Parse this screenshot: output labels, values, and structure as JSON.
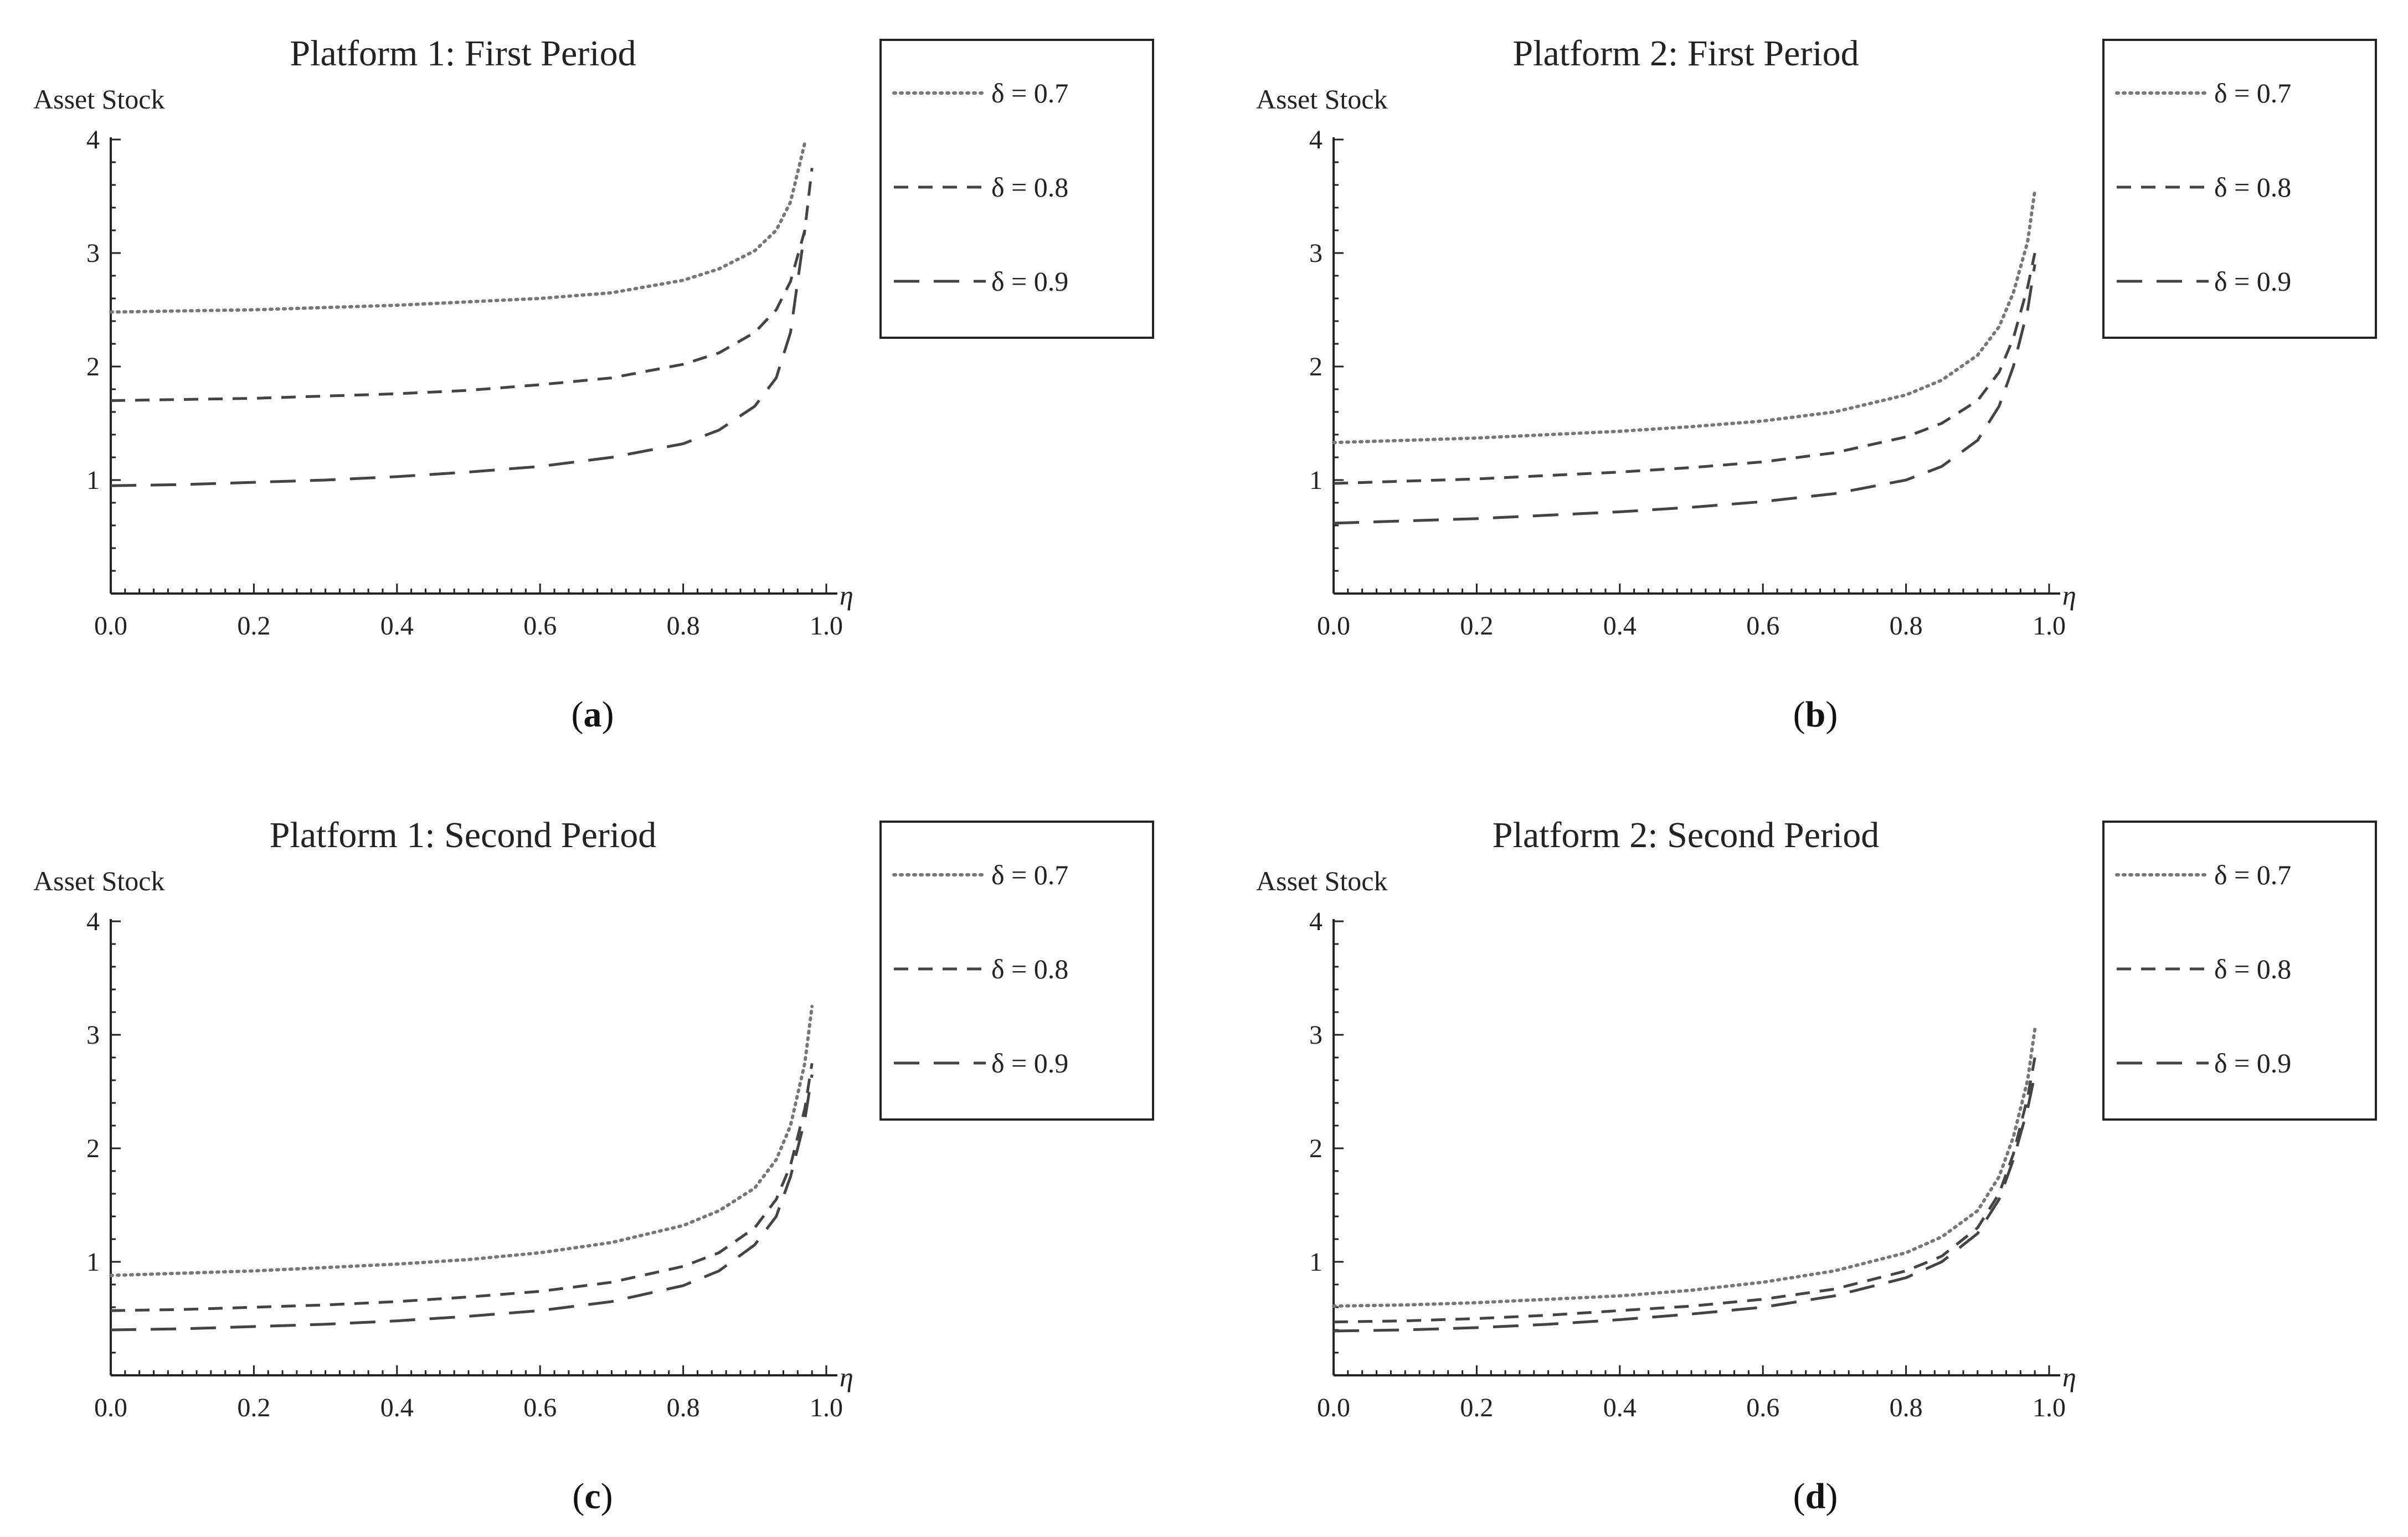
{
  "chart_data": [
    {
      "type": "line",
      "title": "Platform 1: First Period",
      "ylabel": "Asset Stock",
      "xlabel": "η",
      "caption": "a",
      "xlim": [
        0,
        1
      ],
      "ylim": [
        0,
        4
      ],
      "xticks": [
        "0.0",
        "0.2",
        "0.4",
        "0.6",
        "0.8",
        "1.0"
      ],
      "yticks": [
        "1",
        "2",
        "3",
        "4"
      ],
      "grid": false,
      "legend_position": "right",
      "series": [
        {
          "name": "δ = 0.7",
          "style": "dotted",
          "x": [
            0,
            0.1,
            0.2,
            0.3,
            0.4,
            0.5,
            0.6,
            0.7,
            0.8,
            0.85,
            0.9,
            0.93,
            0.95,
            0.97
          ],
          "y": [
            2.48,
            2.49,
            2.5,
            2.52,
            2.54,
            2.57,
            2.6,
            2.65,
            2.76,
            2.86,
            3.02,
            3.2,
            3.45,
            3.97
          ]
        },
        {
          "name": "δ = 0.8",
          "style": "dashed",
          "x": [
            0,
            0.1,
            0.2,
            0.3,
            0.4,
            0.5,
            0.6,
            0.7,
            0.8,
            0.85,
            0.9,
            0.93,
            0.95,
            0.97,
            0.98
          ],
          "y": [
            1.7,
            1.71,
            1.72,
            1.74,
            1.76,
            1.79,
            1.84,
            1.9,
            2.02,
            2.12,
            2.3,
            2.5,
            2.75,
            3.2,
            3.75
          ]
        },
        {
          "name": "δ = 0.9",
          "style": "longdash",
          "x": [
            0,
            0.1,
            0.2,
            0.3,
            0.4,
            0.5,
            0.6,
            0.7,
            0.8,
            0.85,
            0.9,
            0.93,
            0.95,
            0.97
          ],
          "y": [
            0.95,
            0.96,
            0.98,
            1.0,
            1.03,
            1.07,
            1.12,
            1.2,
            1.32,
            1.44,
            1.65,
            1.9,
            2.3,
            3.2
          ]
        }
      ]
    },
    {
      "type": "line",
      "title": "Platform 2: First Period",
      "ylabel": "Asset Stock",
      "xlabel": "η",
      "caption": "b",
      "xlim": [
        0,
        1
      ],
      "ylim": [
        0,
        4
      ],
      "xticks": [
        "0.0",
        "0.2",
        "0.4",
        "0.6",
        "0.8",
        "1.0"
      ],
      "yticks": [
        "1",
        "2",
        "3",
        "4"
      ],
      "grid": false,
      "legend_position": "right",
      "series": [
        {
          "name": "δ = 0.7",
          "style": "dotted",
          "x": [
            0,
            0.1,
            0.2,
            0.3,
            0.4,
            0.5,
            0.6,
            0.7,
            0.8,
            0.85,
            0.9,
            0.93,
            0.95,
            0.97,
            0.98
          ],
          "y": [
            1.33,
            1.35,
            1.37,
            1.4,
            1.43,
            1.47,
            1.52,
            1.6,
            1.75,
            1.88,
            2.1,
            2.35,
            2.65,
            3.1,
            3.55
          ]
        },
        {
          "name": "δ = 0.8",
          "style": "dashed",
          "x": [
            0,
            0.1,
            0.2,
            0.3,
            0.4,
            0.5,
            0.6,
            0.7,
            0.8,
            0.85,
            0.9,
            0.93,
            0.95,
            0.97,
            0.98
          ],
          "y": [
            0.97,
            0.99,
            1.01,
            1.04,
            1.07,
            1.11,
            1.16,
            1.24,
            1.38,
            1.5,
            1.7,
            1.95,
            2.25,
            2.7,
            3.0
          ]
        },
        {
          "name": "δ = 0.9",
          "style": "longdash",
          "x": [
            0,
            0.1,
            0.2,
            0.3,
            0.4,
            0.5,
            0.6,
            0.7,
            0.8,
            0.85,
            0.9,
            0.93,
            0.95,
            0.97,
            0.98
          ],
          "y": [
            0.62,
            0.64,
            0.66,
            0.69,
            0.72,
            0.76,
            0.81,
            0.88,
            1.0,
            1.12,
            1.35,
            1.65,
            2.0,
            2.5,
            2.9
          ]
        }
      ]
    },
    {
      "type": "line",
      "title": "Platform 1: Second Period",
      "ylabel": "Asset Stock",
      "xlabel": "η",
      "caption": "c",
      "xlim": [
        0,
        1
      ],
      "ylim": [
        0,
        4
      ],
      "xticks": [
        "0.0",
        "0.2",
        "0.4",
        "0.6",
        "0.8",
        "1.0"
      ],
      "yticks": [
        "1",
        "2",
        "3",
        "4"
      ],
      "grid": false,
      "legend_position": "right",
      "series": [
        {
          "name": "δ = 0.7",
          "style": "dotted",
          "x": [
            0,
            0.1,
            0.2,
            0.3,
            0.4,
            0.5,
            0.6,
            0.7,
            0.8,
            0.85,
            0.9,
            0.93,
            0.95,
            0.97,
            0.98
          ],
          "y": [
            0.88,
            0.9,
            0.92,
            0.95,
            0.98,
            1.02,
            1.08,
            1.17,
            1.32,
            1.45,
            1.65,
            1.9,
            2.2,
            2.75,
            3.25
          ]
        },
        {
          "name": "δ = 0.8",
          "style": "dashed",
          "x": [
            0,
            0.1,
            0.2,
            0.3,
            0.4,
            0.5,
            0.6,
            0.7,
            0.8,
            0.85,
            0.9,
            0.93,
            0.95,
            0.97,
            0.98
          ],
          "y": [
            0.57,
            0.58,
            0.6,
            0.62,
            0.65,
            0.69,
            0.74,
            0.82,
            0.96,
            1.08,
            1.3,
            1.55,
            1.85,
            2.35,
            2.75
          ]
        },
        {
          "name": "δ = 0.9",
          "style": "longdash",
          "x": [
            0,
            0.1,
            0.2,
            0.3,
            0.4,
            0.5,
            0.6,
            0.7,
            0.8,
            0.85,
            0.9,
            0.93,
            0.95,
            0.97,
            0.98
          ],
          "y": [
            0.4,
            0.41,
            0.43,
            0.45,
            0.48,
            0.52,
            0.57,
            0.65,
            0.79,
            0.92,
            1.15,
            1.4,
            1.75,
            2.25,
            2.65
          ]
        }
      ]
    },
    {
      "type": "line",
      "title": "Platform 2: Second Period",
      "ylabel": "Asset Stock",
      "xlabel": "η",
      "caption": "d",
      "xlim": [
        0,
        1
      ],
      "ylim": [
        0,
        4
      ],
      "xticks": [
        "0.0",
        "0.2",
        "0.4",
        "0.6",
        "0.8",
        "1.0"
      ],
      "yticks": [
        "1",
        "2",
        "3",
        "4"
      ],
      "grid": false,
      "legend_position": "right",
      "series": [
        {
          "name": "δ = 0.7",
          "style": "dotted",
          "x": [
            0,
            0.1,
            0.2,
            0.3,
            0.4,
            0.5,
            0.6,
            0.7,
            0.8,
            0.85,
            0.9,
            0.93,
            0.95,
            0.97,
            0.98
          ],
          "y": [
            0.61,
            0.62,
            0.64,
            0.67,
            0.7,
            0.75,
            0.82,
            0.92,
            1.08,
            1.22,
            1.45,
            1.75,
            2.1,
            2.6,
            3.05
          ]
        },
        {
          "name": "δ = 0.8",
          "style": "dashed",
          "x": [
            0,
            0.1,
            0.2,
            0.3,
            0.4,
            0.5,
            0.6,
            0.7,
            0.8,
            0.85,
            0.9,
            0.93,
            0.95,
            0.97,
            0.98
          ],
          "y": [
            0.47,
            0.48,
            0.5,
            0.53,
            0.57,
            0.61,
            0.67,
            0.76,
            0.92,
            1.05,
            1.3,
            1.6,
            1.95,
            2.45,
            2.8
          ]
        },
        {
          "name": "δ = 0.9",
          "style": "longdash",
          "x": [
            0,
            0.1,
            0.2,
            0.3,
            0.4,
            0.5,
            0.6,
            0.7,
            0.8,
            0.85,
            0.9,
            0.93,
            0.95,
            0.97,
            0.98
          ],
          "y": [
            0.39,
            0.4,
            0.42,
            0.45,
            0.49,
            0.54,
            0.6,
            0.7,
            0.86,
            1.0,
            1.25,
            1.55,
            1.9,
            2.35,
            2.65
          ]
        }
      ]
    }
  ],
  "colors": {
    "delta_07": "#777777",
    "delta_08": "#444444",
    "delta_09": "#444444",
    "axis": "#222222"
  }
}
